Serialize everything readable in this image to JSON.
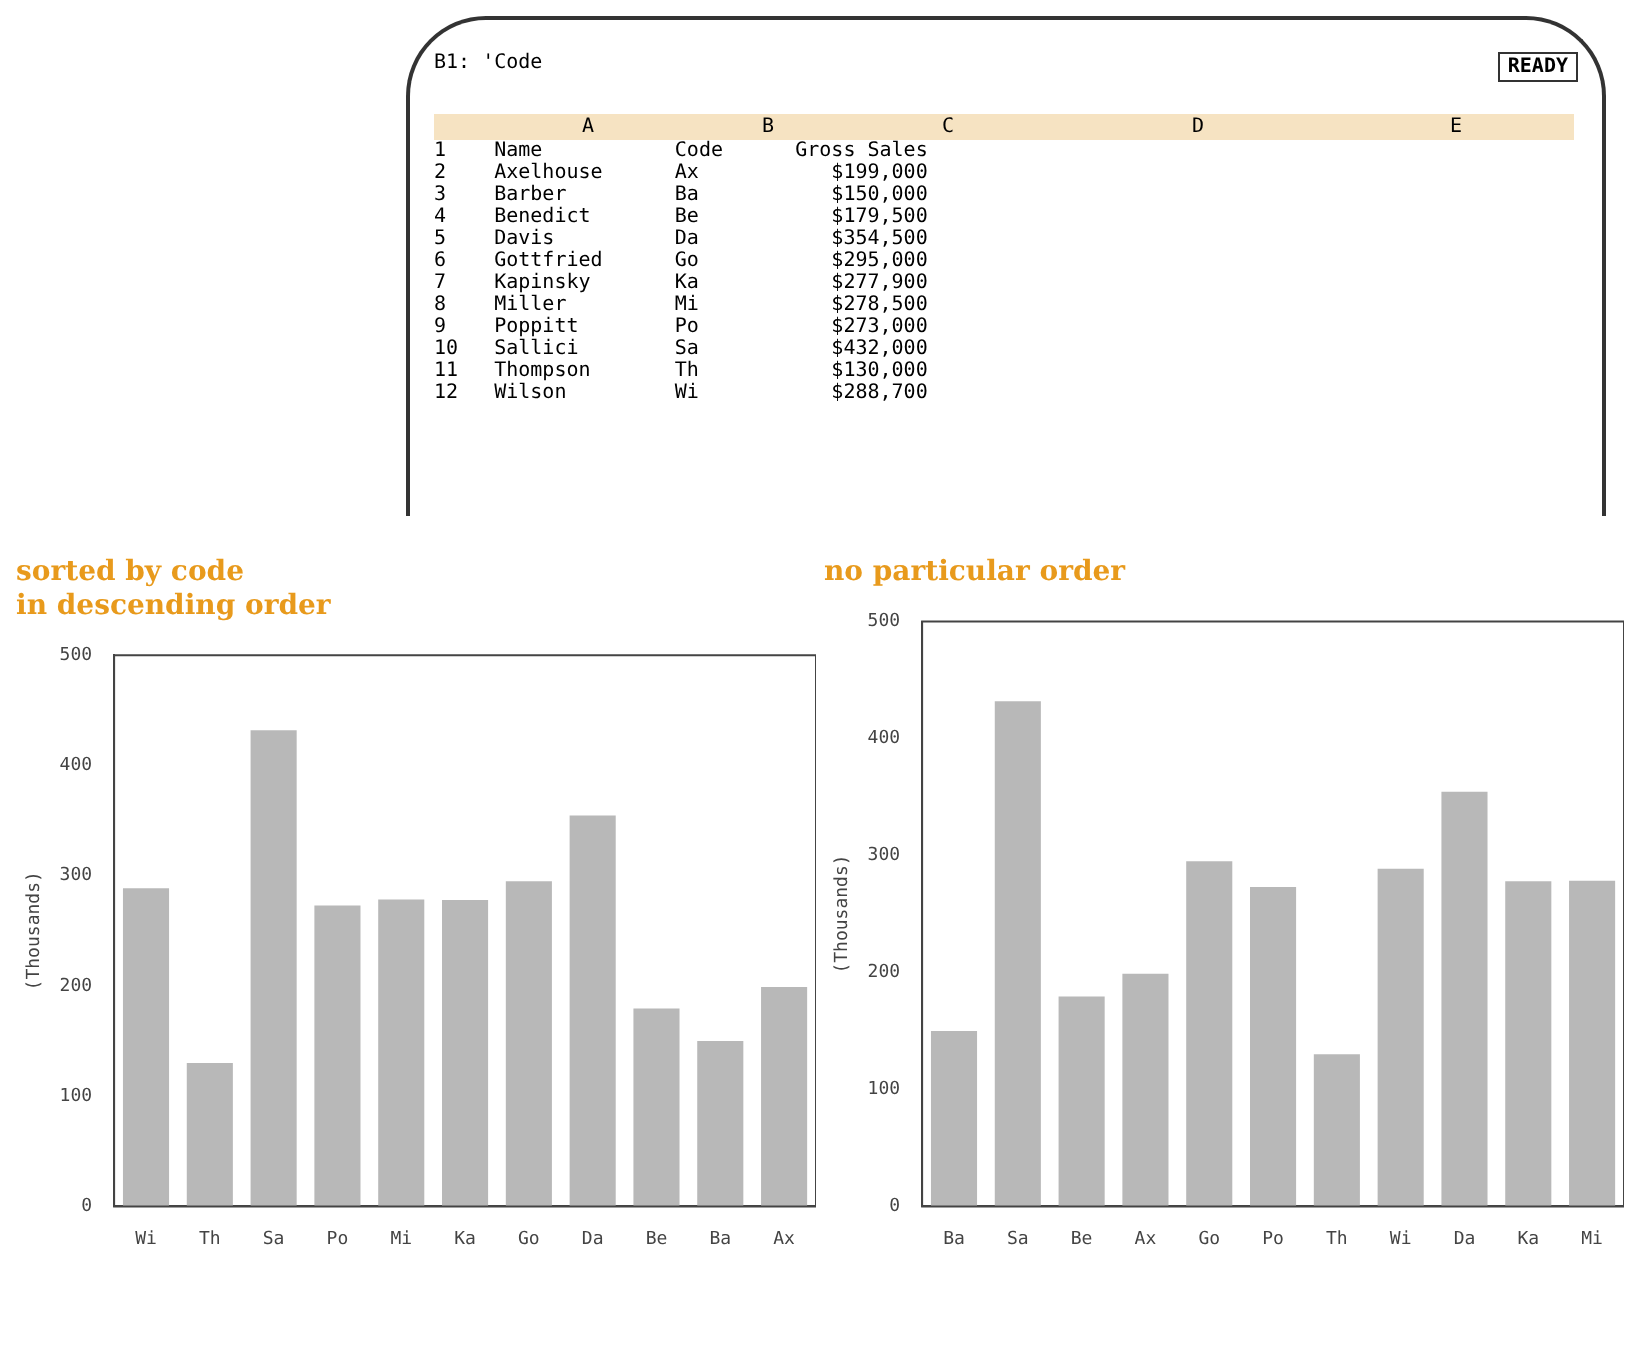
{
  "chart_data": [
    {
      "type": "other",
      "title": "B1: 'Code",
      "annotations": [
        "READY"
      ],
      "categories": [
        null,
        "A",
        "B",
        "C",
        "D",
        "E"
      ],
      "cell_labels": [
        [
          "1",
          "Name",
          "Code",
          "Gross Sales",
          null,
          null
        ],
        [
          "2",
          "Axelhouse",
          "Ax",
          "$199,000",
          null,
          null
        ],
        [
          "3",
          "Barber",
          "Ba",
          "$150,000",
          null,
          null
        ],
        [
          "4",
          "Benedict",
          "Be",
          "$179,500",
          null,
          null
        ],
        [
          "5",
          "Davis",
          "Da",
          "$354,500",
          null,
          null
        ],
        [
          "6",
          "Gottfried",
          "Go",
          "$295,000",
          null,
          null
        ],
        [
          "7",
          "Kapinsky",
          "Ka",
          "$277,900",
          null,
          null
        ],
        [
          "8",
          "Miller",
          "Mi",
          "$278,500",
          null,
          null
        ],
        [
          "9",
          "Poppitt",
          "Po",
          "$273,000",
          null,
          null
        ],
        [
          "10",
          "Sallici",
          "Sa",
          "$432,000",
          null,
          null
        ],
        [
          "11",
          "Thompson",
          "Th",
          "$130,000",
          null,
          null
        ],
        [
          "12",
          "Wilson",
          "Wi",
          "$288,700",
          null,
          null
        ]
      ]
    },
    {
      "type": "bar",
      "title": "sorted by code\nin descending order",
      "ylabel": "(Thousands)",
      "categories": [
        "Wi",
        "Th",
        "Sa",
        "Po",
        "Mi",
        "Ka",
        "Go",
        "Da",
        "Be",
        "Ba",
        "Ax"
      ],
      "series": [
        {
          "color": "#b8b8b8",
          "values": [
            288.7,
            130,
            432,
            273,
            278.5,
            277.9,
            295,
            354.5,
            179.5,
            150,
            199
          ]
        }
      ],
      "ylim": [
        0,
        500
      ],
      "yticks": [
        0,
        100,
        200,
        300,
        400,
        500
      ]
    },
    {
      "type": "bar",
      "title": "no particular order",
      "ylabel": "(Thousands)",
      "categories": [
        "Ba",
        "Sa",
        "Be",
        "Ax",
        "Go",
        "Po",
        "Th",
        "Wi",
        "Da",
        "Ka",
        "Mi"
      ],
      "series": [
        {
          "color": "#b8b8b8",
          "values": [
            150,
            432,
            179.5,
            199,
            295,
            273,
            130,
            288.7,
            354.5,
            277.9,
            278.5
          ]
        }
      ],
      "ylim": [
        0,
        500
      ],
      "yticks": [
        0,
        100,
        200,
        300,
        400,
        500
      ]
    }
  ]
}
